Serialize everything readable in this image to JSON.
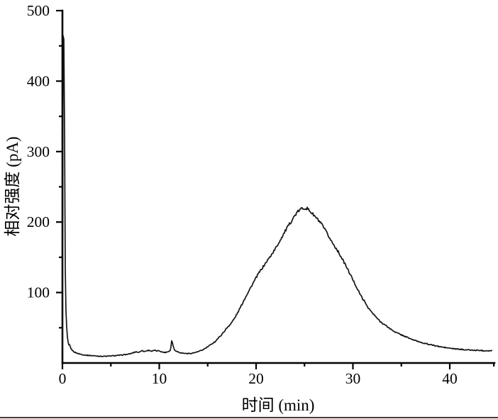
{
  "colors": {
    "axis": "#000000",
    "trace": "#141414",
    "tick_label": "#000000",
    "bottom_rule": "#3d3d3d",
    "background": "#ffffff"
  },
  "chart_data": {
    "type": "line",
    "title": "",
    "xlabel": "时间 (min)",
    "ylabel": "相对强度 (pA)",
    "xlim": [
      0,
      44.6
    ],
    "ylim": [
      0,
      500
    ],
    "x_major_ticks": [
      0,
      10,
      20,
      30,
      40
    ],
    "x_minor_ticks": [
      5,
      15,
      25,
      35,
      44.55
    ],
    "y_major_ticks": [
      100,
      200,
      300,
      400,
      500
    ],
    "y_minor_ticks": [
      50,
      150,
      250,
      350,
      450
    ],
    "grid": false,
    "legend": "none",
    "series": [
      {
        "name": "trace",
        "points": [
          [
            0,
            18
          ],
          [
            0.03,
            420
          ],
          [
            0.06,
            468
          ],
          [
            0.12,
            466
          ],
          [
            0.18,
            445
          ],
          [
            0.22,
            330
          ],
          [
            0.26,
            180
          ],
          [
            0.32,
            95
          ],
          [
            0.4,
            58
          ],
          [
            0.5,
            38
          ],
          [
            0.6,
            28
          ],
          [
            0.7,
            23
          ],
          [
            0.76,
            28
          ],
          [
            0.82,
            22
          ],
          [
            0.95,
            19
          ],
          [
            1.1,
            17
          ],
          [
            1.3,
            15
          ],
          [
            1.6,
            13.5
          ],
          [
            2,
            12
          ],
          [
            2.5,
            11
          ],
          [
            3,
            10.5
          ],
          [
            3.5,
            10
          ],
          [
            4,
            9.5
          ],
          [
            4.5,
            9.5
          ],
          [
            5,
            10
          ],
          [
            5.5,
            10.5
          ],
          [
            6,
            11
          ],
          [
            6.5,
            12
          ],
          [
            7,
            13
          ],
          [
            7.3,
            14.5
          ],
          [
            7.6,
            16
          ],
          [
            7.9,
            15
          ],
          [
            8.2,
            18
          ],
          [
            8.45,
            16
          ],
          [
            8.7,
            17.5
          ],
          [
            9,
            18
          ],
          [
            9.25,
            16.5
          ],
          [
            9.5,
            18
          ],
          [
            9.75,
            17
          ],
          [
            10,
            17.5
          ],
          [
            10.3,
            15.5
          ],
          [
            10.6,
            15
          ],
          [
            10.9,
            16
          ],
          [
            11.15,
            18
          ],
          [
            11.3,
            33
          ],
          [
            11.42,
            25
          ],
          [
            11.55,
            19
          ],
          [
            11.8,
            16.5
          ],
          [
            12.1,
            15
          ],
          [
            12.4,
            14
          ],
          [
            12.8,
            13.5
          ],
          [
            13.2,
            13.5
          ],
          [
            13.6,
            14.5
          ],
          [
            14,
            16
          ],
          [
            14.4,
            18
          ],
          [
            14.8,
            21
          ],
          [
            15.1,
            24
          ],
          [
            15.35,
            26
          ],
          [
            15.55,
            28.5
          ],
          [
            15.75,
            30
          ],
          [
            16,
            34
          ],
          [
            16.3,
            38
          ],
          [
            16.6,
            43
          ],
          [
            17,
            50
          ],
          [
            17.4,
            56
          ],
          [
            17.8,
            64
          ],
          [
            18.2,
            74
          ],
          [
            18.6,
            85
          ],
          [
            19,
            96
          ],
          [
            19.4,
            106
          ],
          [
            19.8,
            116
          ],
          [
            20.2,
            126
          ],
          [
            20.6,
            134
          ],
          [
            21,
            142
          ],
          [
            21.4,
            150
          ],
          [
            21.8,
            158
          ],
          [
            22.2,
            167
          ],
          [
            22.6,
            177
          ],
          [
            23,
            187
          ],
          [
            23.4,
            196
          ],
          [
            23.8,
            205
          ],
          [
            24.1,
            211
          ],
          [
            24.4,
            216
          ],
          [
            24.7,
            219
          ],
          [
            25,
            220
          ],
          [
            25.3,
            219
          ],
          [
            25.6,
            215
          ],
          [
            26,
            209
          ],
          [
            26.4,
            203
          ],
          [
            26.8,
            196
          ],
          [
            27.2,
            187
          ],
          [
            27.6,
            177
          ],
          [
            28,
            168
          ],
          [
            28.4,
            160
          ],
          [
            28.8,
            150
          ],
          [
            29.2,
            140
          ],
          [
            29.6,
            129
          ],
          [
            30,
            118
          ],
          [
            30.4,
            107
          ],
          [
            30.8,
            96
          ],
          [
            31.2,
            87
          ],
          [
            31.6,
            78
          ],
          [
            32,
            71
          ],
          [
            32.4,
            65
          ],
          [
            32.8,
            59
          ],
          [
            33.2,
            55
          ],
          [
            33.6,
            51
          ],
          [
            34,
            47
          ],
          [
            34.5,
            43
          ],
          [
            35,
            40
          ],
          [
            35.5,
            37
          ],
          [
            36,
            34
          ],
          [
            36.5,
            31.5
          ],
          [
            37,
            29.5
          ],
          [
            37.5,
            27.5
          ],
          [
            38,
            26
          ],
          [
            38.5,
            24.5
          ],
          [
            39,
            23
          ],
          [
            39.5,
            22
          ],
          [
            40,
            21
          ],
          [
            40.5,
            20
          ],
          [
            41,
            19.5
          ],
          [
            41.5,
            19
          ],
          [
            42,
            18.5
          ],
          [
            42.5,
            18
          ],
          [
            43,
            18
          ],
          [
            43.5,
            17.5
          ],
          [
            44,
            17.5
          ],
          [
            44.4,
            17.5
          ]
        ]
      }
    ]
  }
}
